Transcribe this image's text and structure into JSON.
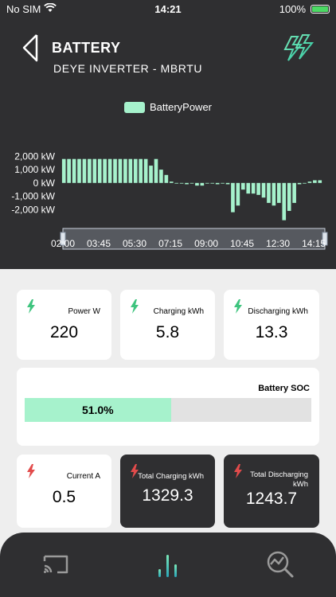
{
  "status_bar": {
    "carrier": "No SIM",
    "time": "14:21",
    "battery": "100%"
  },
  "header": {
    "title": "BATTERY",
    "subtitle": "DEYE INVERTER - MBRTU"
  },
  "chart_data": {
    "type": "bar",
    "legend": [
      "BatteryPower"
    ],
    "series": [
      {
        "name": "BatteryPower",
        "color": "#a6f2cc"
      }
    ],
    "x": [
      "02:00",
      "02:15",
      "02:30",
      "02:45",
      "03:00",
      "03:15",
      "03:30",
      "03:45",
      "04:00",
      "04:15",
      "04:30",
      "04:45",
      "05:00",
      "05:15",
      "05:30",
      "05:45",
      "06:00",
      "06:15",
      "06:30",
      "06:45",
      "07:00",
      "07:15",
      "07:30",
      "07:45",
      "08:00",
      "08:15",
      "08:30",
      "08:45",
      "09:00",
      "09:15",
      "09:30",
      "09:45",
      "10:00",
      "10:15",
      "10:30",
      "10:45",
      "11:00",
      "11:15",
      "11:30",
      "11:45",
      "12:00",
      "12:15",
      "12:30",
      "12:45",
      "13:00",
      "13:15",
      "13:30",
      "13:45",
      "14:00",
      "14:15",
      "14:30"
    ],
    "values": [
      1800,
      1800,
      1800,
      1800,
      1800,
      1800,
      1800,
      1800,
      1800,
      1800,
      1800,
      1800,
      1800,
      1800,
      1800,
      1800,
      1800,
      1300,
      1800,
      1000,
      600,
      100,
      0,
      0,
      -100,
      0,
      -200,
      -200,
      0,
      0,
      -100,
      0,
      -100,
      -2200,
      -1700,
      -500,
      -800,
      -800,
      -900,
      -1100,
      -1500,
      -1700,
      -1500,
      -2800,
      -2100,
      -1500,
      -100,
      0,
      100,
      200,
      200
    ],
    "y_ticks": [
      "2,000 kW",
      "1,000 kW",
      "0 kW",
      "-1,000 kW",
      "-2,000 kW"
    ],
    "ylim": [
      -3000,
      2500
    ],
    "x_ticks": [
      "02:00",
      "03:45",
      "05:30",
      "07:15",
      "09:00",
      "10:45",
      "12:30",
      "14:15"
    ],
    "grid": false
  },
  "metrics": {
    "power": {
      "label": "Power W",
      "value": "220"
    },
    "charging": {
      "label": "Charging kWh",
      "value": "5.8"
    },
    "discharging": {
      "label": "Discharging kWh",
      "value": "13.3"
    },
    "soc": {
      "label": "Battery SOC",
      "value": "51.0%",
      "fraction": 0.51
    },
    "current": {
      "label": "Current A",
      "value": "0.5"
    },
    "total_charging": {
      "label": "Total Charging kWh",
      "value": "1329.3"
    },
    "total_discharging": {
      "label_line1": "Total Discharging",
      "label_line2": "kWh",
      "value": "1243.7"
    }
  },
  "nav": {
    "items": [
      "cast-icon",
      "stats-icon",
      "search-chart-icon"
    ],
    "active": 1
  },
  "colors": {
    "accent": "#a6f2cc",
    "dark": "#2f2f31",
    "bolt_green": "#3ec47e",
    "bolt_red": "#e24b4b"
  }
}
